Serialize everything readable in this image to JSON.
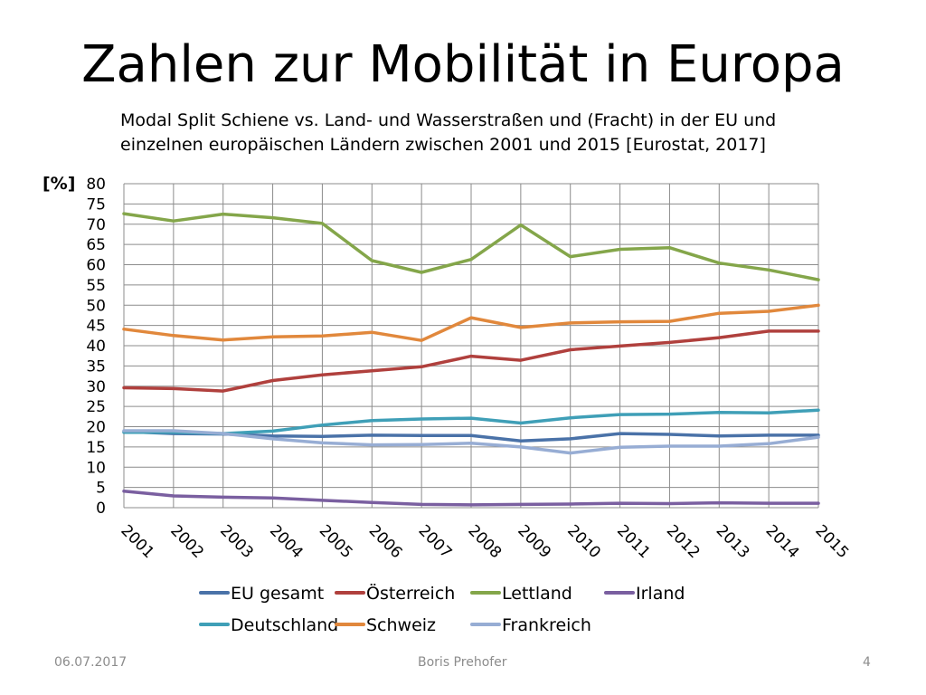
{
  "slide": {
    "title": "Zahlen zur Mobilität in Europa",
    "subtitle_line1": "Modal Split Schiene vs. Land- und Wasserstraßen und (Fracht) in der EU und",
    "subtitle_line2": "einzelnen europäischen Ländern zwischen 2001 und 2015 [Eurostat, 2017]"
  },
  "footer": {
    "date": "06.07.2017",
    "author": "Boris Prehofer",
    "page": "4"
  },
  "chart_data": {
    "type": "line",
    "title": "",
    "xlabel": "",
    "ylabel": "[%]",
    "ylim": [
      0,
      80
    ],
    "ytick_step": 5,
    "grid": true,
    "legend_position": "bottom",
    "categories": [
      "2001",
      "2002",
      "2003",
      "2004",
      "2005",
      "2006",
      "2007",
      "2008",
      "2009",
      "2010",
      "2011",
      "2012",
      "2013",
      "2014",
      "2015"
    ],
    "series": [
      {
        "name": "EU gesamt",
        "color": "#4a72a8",
        "values": [
          18.8,
          18.3,
          18.2,
          17.7,
          17.6,
          17.9,
          17.8,
          17.8,
          16.5,
          17.0,
          18.3,
          18.1,
          17.7,
          17.9,
          17.9
        ]
      },
      {
        "name": "Österreich",
        "color": "#b0403d",
        "values": [
          29.6,
          29.4,
          28.8,
          31.4,
          32.8,
          33.8,
          34.8,
          37.4,
          36.4,
          39.0,
          39.9,
          40.8,
          42.0,
          43.6,
          43.6
        ]
      },
      {
        "name": "Lettland",
        "color": "#84a64a",
        "values": [
          72.6,
          70.8,
          72.5,
          71.6,
          70.2,
          61.0,
          58.1,
          61.3,
          69.8,
          62.0,
          63.8,
          64.2,
          60.4,
          58.7,
          56.3
        ]
      },
      {
        "name": "Irland",
        "color": "#7a5fa0",
        "values": [
          4.1,
          2.9,
          2.6,
          2.4,
          1.8,
          1.3,
          0.8,
          0.7,
          0.8,
          0.9,
          1.1,
          1.0,
          1.2,
          1.1,
          1.1
        ]
      },
      {
        "name": "Deutschland",
        "color": "#3f9fb7",
        "values": [
          18.6,
          18.6,
          18.3,
          18.9,
          20.4,
          21.5,
          21.9,
          22.1,
          20.9,
          22.2,
          23.0,
          23.1,
          23.5,
          23.4,
          24.1
        ]
      },
      {
        "name": "Schweiz",
        "color": "#e1883c",
        "values": [
          44.1,
          42.5,
          41.4,
          42.2,
          42.4,
          43.3,
          41.3,
          46.9,
          44.5,
          45.6,
          45.9,
          46.0,
          48.0,
          48.5,
          50.0
        ]
      },
      {
        "name": "Frankreich",
        "color": "#97add4",
        "values": [
          19.0,
          19.0,
          18.3,
          17.0,
          16.0,
          15.5,
          15.6,
          15.9,
          15.0,
          13.5,
          14.9,
          15.2,
          15.2,
          15.8,
          17.4
        ]
      }
    ]
  }
}
